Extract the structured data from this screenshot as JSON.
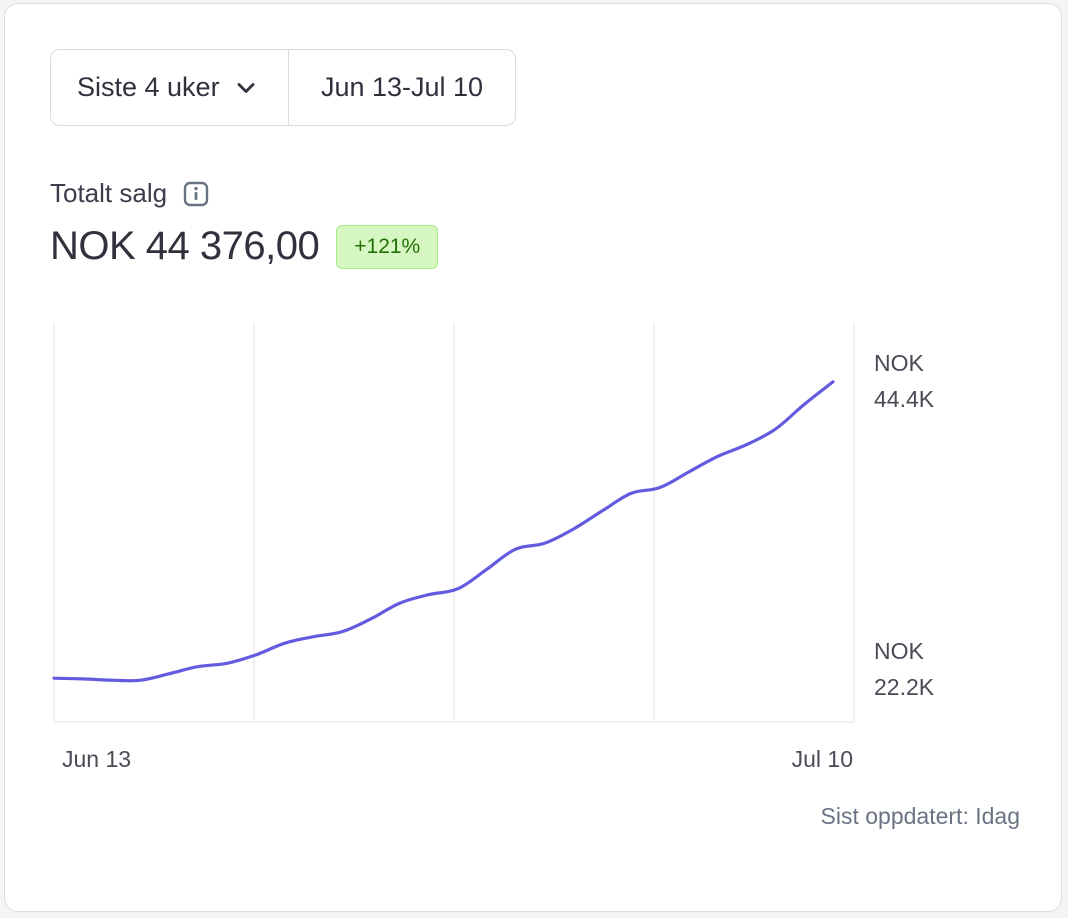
{
  "range": {
    "selected": "Siste 4 uker",
    "dates": "Jun 13-Jul 10"
  },
  "metric": {
    "label": "Totalt salg",
    "value": "NOK 44 376,00",
    "change": "+121%"
  },
  "colors": {
    "line": "#635bdf",
    "grid": "#e6e7ea",
    "badge_bg": "#d7f7c2",
    "badge_text": "#217005"
  },
  "chart_data": {
    "type": "line",
    "title": "Totalt salg",
    "x": [
      "Jun 13",
      "Jun 14",
      "Jun 15",
      "Jun 16",
      "Jun 17",
      "Jun 18",
      "Jun 19",
      "Jun 20",
      "Jun 21",
      "Jun 22",
      "Jun 23",
      "Jun 24",
      "Jun 25",
      "Jun 26",
      "Jun 27",
      "Jun 28",
      "Jun 29",
      "Jun 30",
      "Jul 1",
      "Jul 2",
      "Jul 3",
      "Jul 4",
      "Jul 5",
      "Jul 6",
      "Jul 7",
      "Jul 8",
      "Jul 9",
      "Jul 10"
    ],
    "series": [
      {
        "values": [
          20100,
          20050,
          19950,
          19950,
          20450,
          21000,
          21250,
          21900,
          22800,
          23300,
          23700,
          24700,
          25900,
          26550,
          27000,
          28500,
          30050,
          30500,
          31600,
          33000,
          34350,
          34800,
          36000,
          37200,
          38100,
          39300,
          41200,
          42950
        ]
      }
    ],
    "x_tick_labels": [
      "Jun 13",
      "Jul 10"
    ],
    "y_tick_labels": [
      {
        "line1": "NOK",
        "line2": "22.2K",
        "value": 22200
      },
      {
        "line1": "NOK",
        "line2": "44.4K",
        "value": 44400
      }
    ],
    "grid": "vertical",
    "grid_lines": 4
  },
  "footer": {
    "updated": "Sist oppdatert: Idag"
  }
}
